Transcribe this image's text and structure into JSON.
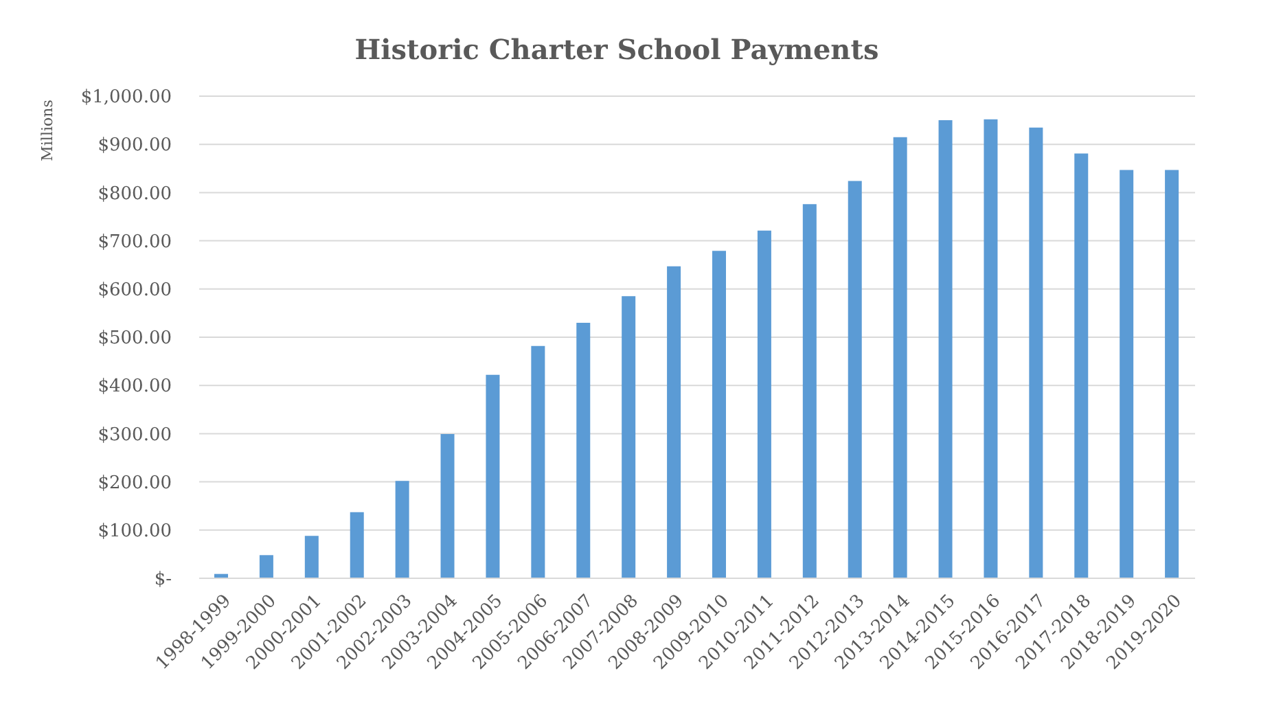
{
  "chart_data": {
    "type": "bar",
    "title": "Historic Charter School Payments",
    "ylabel": "Millions",
    "categories": [
      "1998-1999",
      "1999-2000",
      "2000-2001",
      "2001-2002",
      "2002-2003",
      "2003-2004",
      "2004-2005",
      "2005-2006",
      "2006-2007",
      "2007-2008",
      "2008-2009",
      "2009-2010",
      "2010-2011",
      "2011-2012",
      "2012-2013",
      "2013-2014",
      "2014-2015",
      "2015-2016",
      "2016-2017",
      "2017-2018",
      "2018-2019",
      "2019-2020"
    ],
    "values": [
      9,
      48,
      88,
      137,
      202,
      299,
      422,
      482,
      530,
      585,
      647,
      679,
      721,
      776,
      824,
      915,
      950,
      952,
      935,
      881,
      847,
      847
    ],
    "color": "#5b9bd5",
    "ylim": [
      0,
      1000
    ],
    "yticks": [
      {
        "value": 0,
        "label": "$-"
      },
      {
        "value": 100,
        "label": "$100.00"
      },
      {
        "value": 200,
        "label": "$200.00"
      },
      {
        "value": 300,
        "label": "$300.00"
      },
      {
        "value": 400,
        "label": "$400.00"
      },
      {
        "value": 500,
        "label": "$500.00"
      },
      {
        "value": 600,
        "label": "$600.00"
      },
      {
        "value": 700,
        "label": "$700.00"
      },
      {
        "value": 800,
        "label": "$800.00"
      },
      {
        "value": 900,
        "label": "$900.00"
      },
      {
        "value": 1000,
        "label": "$1,000.00"
      }
    ],
    "grid": "y"
  }
}
